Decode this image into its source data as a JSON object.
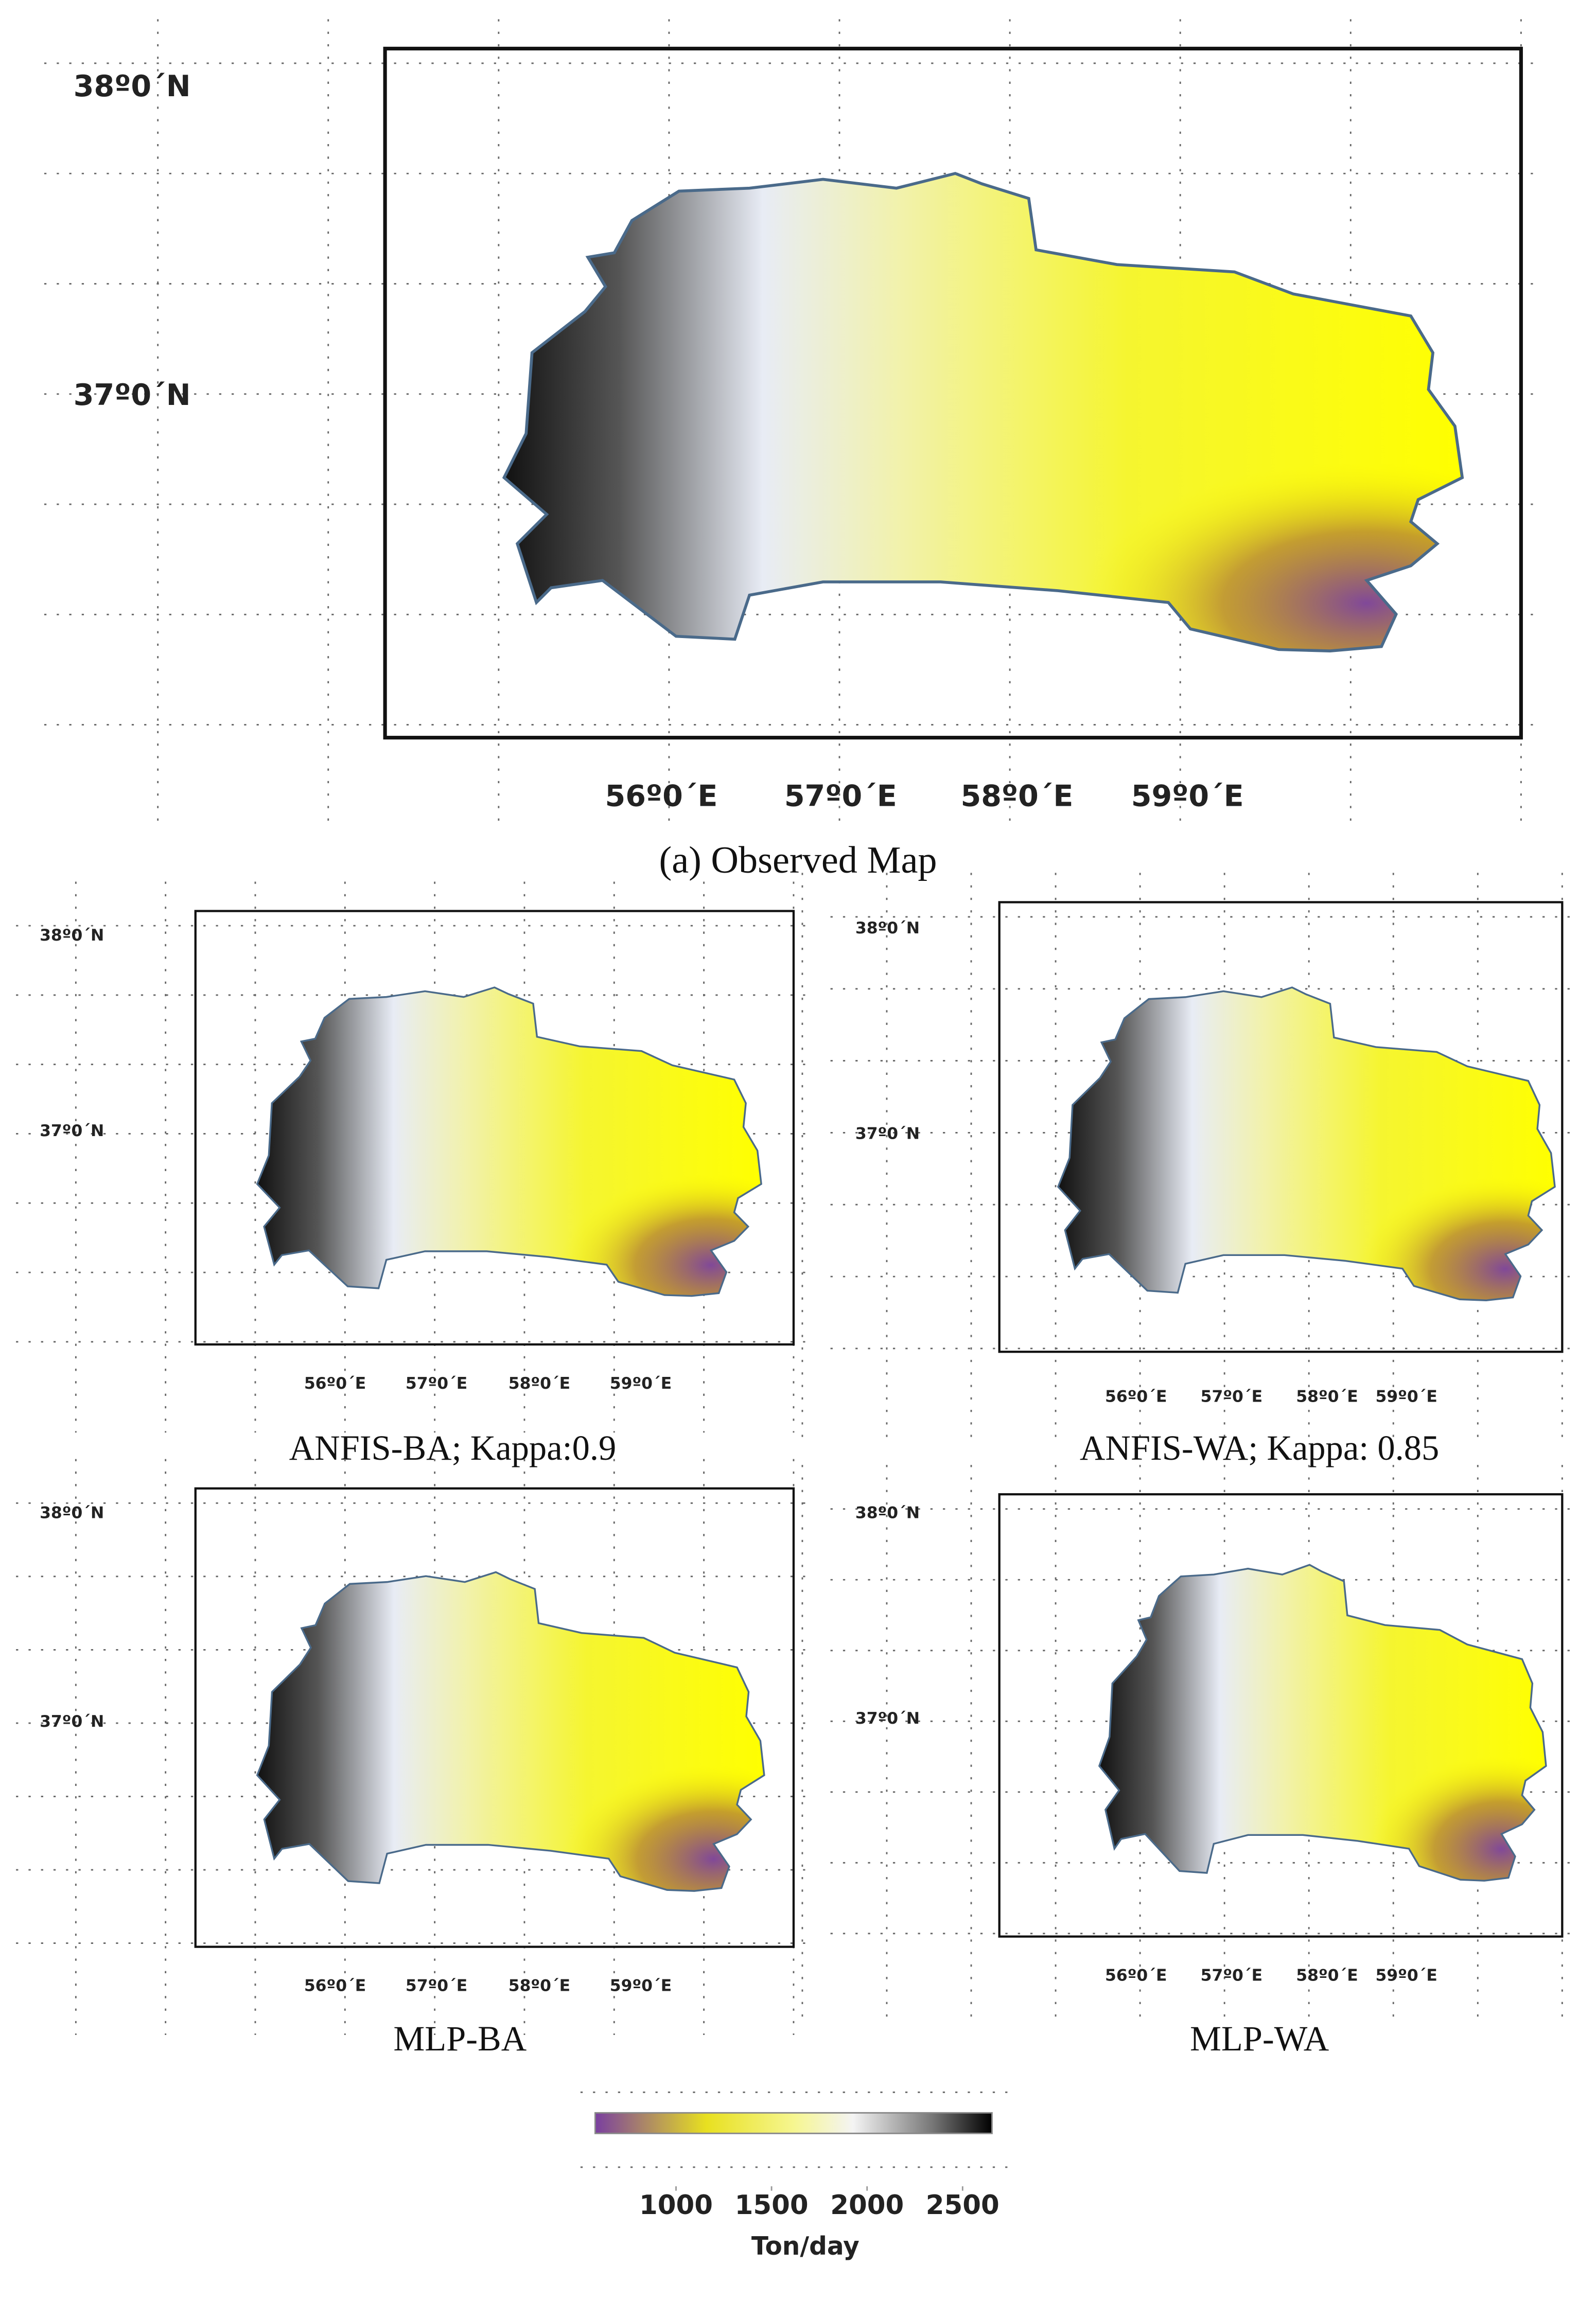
{
  "panels": [
    {
      "caption": "(a) Observed Map",
      "lat_labels": [
        "38º0´N",
        "37º0´N"
      ],
      "lon_labels": [
        "56º0´E",
        "57º0´E",
        "58º0´E",
        "59º0´E"
      ]
    },
    {
      "caption": "ANFIS-BA; Kappa:0.9",
      "lat_labels": [
        "38º0´N",
        "37º0´N"
      ],
      "lon_labels": [
        "56º0´E",
        "57º0´E",
        "58º0´E",
        "59º0´E"
      ]
    },
    {
      "caption": "ANFIS-WA; Kappa: 0.85",
      "lat_labels": [
        "38º0´N",
        "37º0´N"
      ],
      "lon_labels": [
        "56º0´E",
        "57º0´E",
        "58º0´E",
        "59º0´E"
      ]
    },
    {
      "caption": "MLP-BA",
      "lat_labels": [
        "38º0´N",
        "37º0´N"
      ],
      "lon_labels": [
        "56º0´E",
        "57º0´E",
        "58º0´E",
        "59º0´E"
      ]
    },
    {
      "caption": "MLP-WA",
      "lat_labels": [
        "38º0´N",
        "37º0´N"
      ],
      "lon_labels": [
        "56º0´E",
        "57º0´E",
        "58º0´E",
        "59º0´E"
      ]
    }
  ],
  "legend": {
    "ticks": [
      1000,
      1500,
      2000,
      2500
    ],
    "unit": "Ton/day"
  }
}
